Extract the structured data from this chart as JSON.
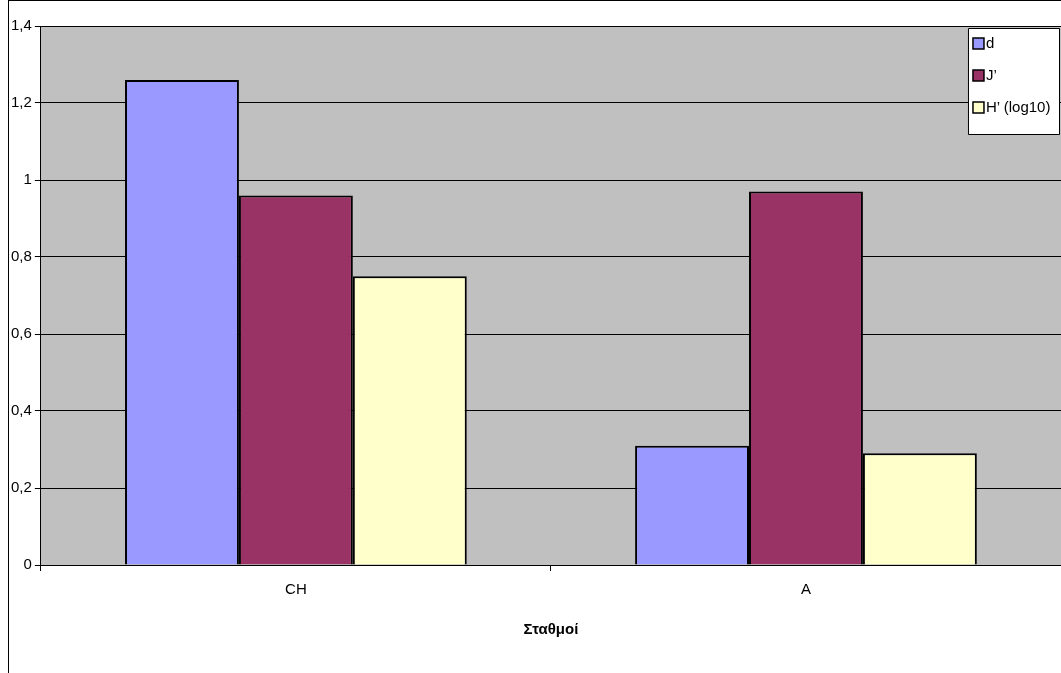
{
  "chart_data": {
    "type": "bar",
    "xlabel": "Σταθμοί",
    "categories": [
      "CH",
      "A"
    ],
    "series": [
      {
        "name": "d",
        "color": "#9999ff",
        "values": [
          1.26,
          0.31
        ]
      },
      {
        "name": "J’",
        "color": "#993366",
        "values": [
          0.96,
          0.97
        ]
      },
      {
        "name": "H’ (log10)",
        "color": "#ffffcc",
        "values": [
          0.75,
          0.29
        ]
      }
    ],
    "ylim": [
      0,
      1.4
    ],
    "yticks": [
      0,
      {
        "value": 0.2,
        "label": "0,2"
      },
      {
        "value": 0.4,
        "label": "0,4"
      },
      {
        "value": 0.6,
        "label": "0,6"
      },
      {
        "value": 0.8,
        "label": "0,8"
      },
      1,
      {
        "value": 1.2,
        "label": "1,2"
      },
      {
        "value": 1.4,
        "label": "1,4"
      }
    ],
    "grid": "y",
    "legend": "top right"
  }
}
